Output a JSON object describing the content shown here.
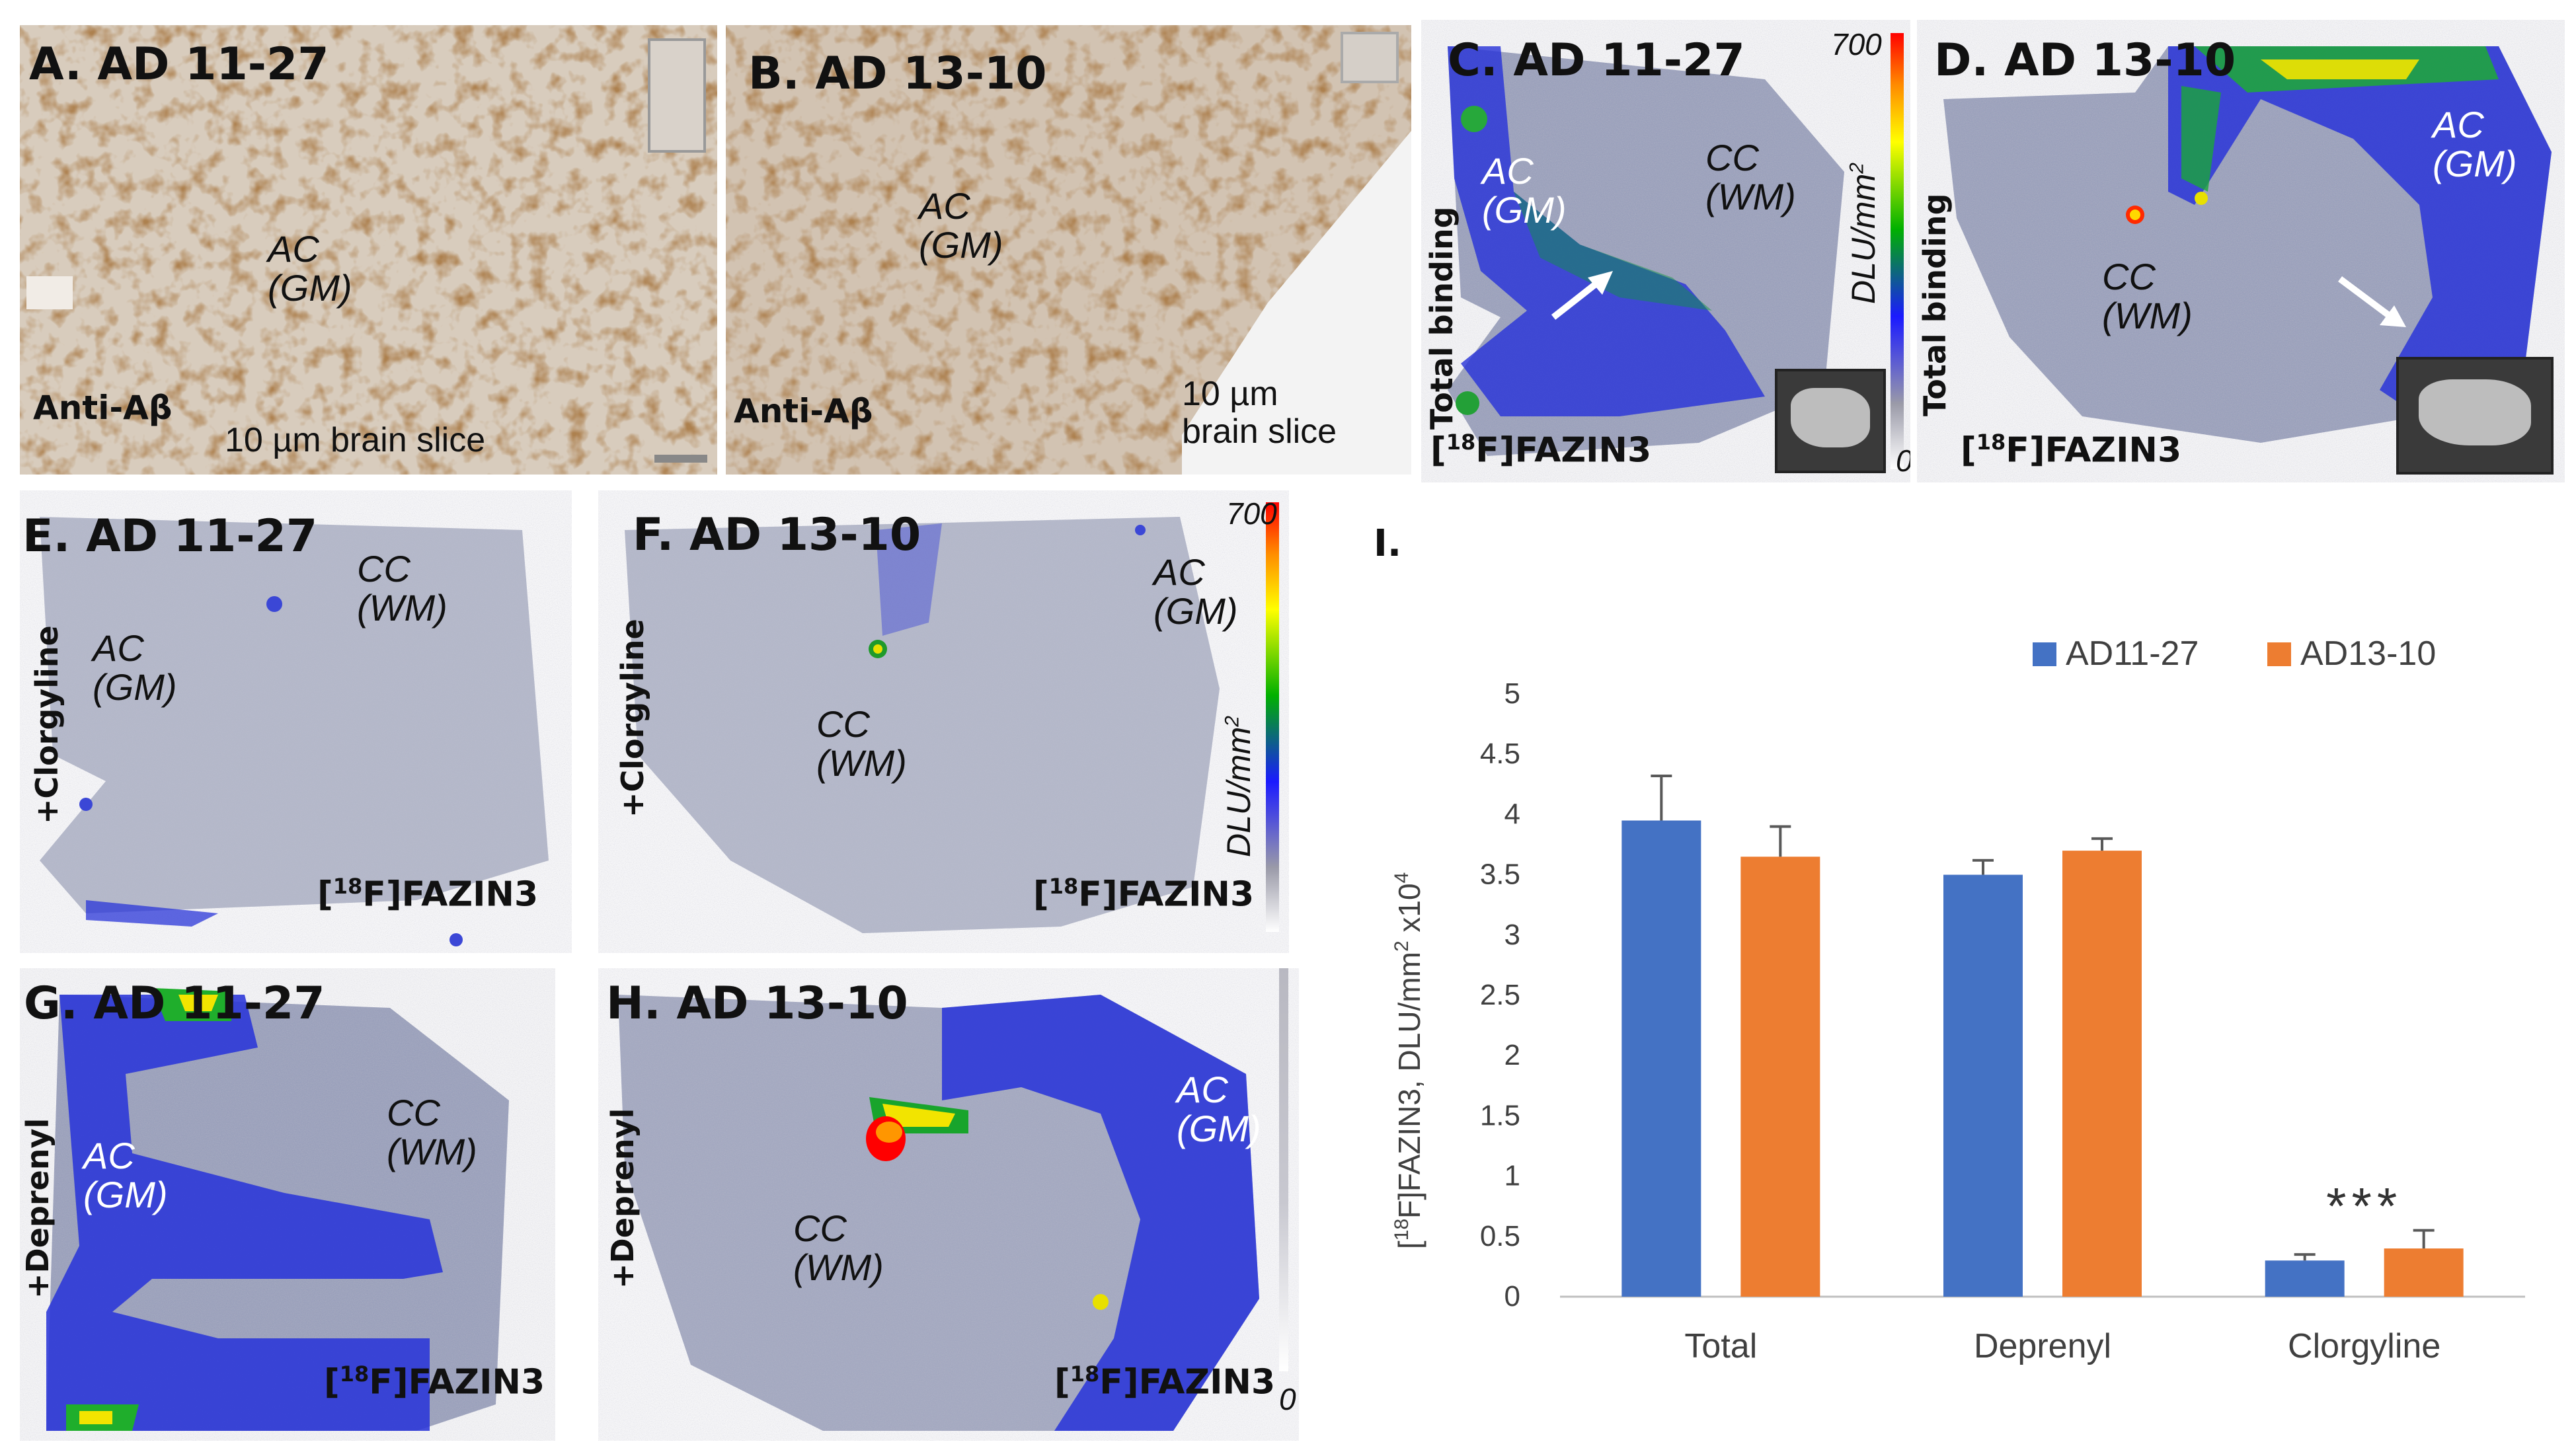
{
  "panels": {
    "A": {
      "title": "A. AD 11-27",
      "region": "AC\n(GM)",
      "stain": "Anti-Aβ",
      "slice": "10 µm brain slice"
    },
    "B": {
      "title": "B. AD 13-10",
      "region": "AC\n(GM)",
      "stain": "Anti-Aβ",
      "slice": "10 µm\nbrain slice"
    },
    "C": {
      "title": "C. AD 11-27",
      "region_ac": "AC\n(GM)",
      "region_cc": "CC\n(WM)",
      "side": "Total binding",
      "tracer_sup": "18",
      "tracer_rest": "F]FAZIN3",
      "tracer_open": "["
    },
    "D": {
      "title": "D. AD 13-10",
      "region_ac": "AC\n(GM)",
      "region_cc": "CC\n(WM)",
      "side": "Total binding",
      "tracer_sup": "18",
      "tracer_rest": "F]FAZIN3",
      "tracer_open": "["
    },
    "E": {
      "title": "E. AD 11-27",
      "region_ac": "AC\n(GM)",
      "region_cc": "CC\n(WM)",
      "side": "+Clorgyline",
      "tracer_sup": "18",
      "tracer_rest": "F]FAZIN3",
      "tracer_open": "["
    },
    "F": {
      "title": "F. AD 13-10",
      "region_ac": "AC\n(GM)",
      "region_cc": "CC\n(WM)",
      "side": "+Clorgyline",
      "tracer_sup": "18",
      "tracer_rest": "F]FAZIN3",
      "tracer_open": "["
    },
    "G": {
      "title": "G. AD 11-27",
      "region_ac": "AC\n(GM)",
      "region_cc": "CC\n(WM)",
      "side": "+Deprenyl",
      "tracer_sup": "18",
      "tracer_rest": "F]FAZIN3",
      "tracer_open": "["
    },
    "H": {
      "title": "H. AD 13-10",
      "region_ac": "AC\n(GM)",
      "region_cc": "CC\n(WM)",
      "side": "+Deprenyl",
      "tracer_sup": "18",
      "tracer_rest": "F]FAZIN3",
      "tracer_open": "["
    }
  },
  "colorbar_top": {
    "max": "700",
    "min": "0",
    "unit": "DLU/mm",
    "unit_sup": "2"
  },
  "colorbar_mid": {
    "max": "700",
    "min": "0",
    "unit": "DLU/mm",
    "unit_sup": "2"
  },
  "chart_label": "I.",
  "colors": {
    "series1": "#4472c4",
    "series2": "#ed7d31",
    "axis": "#bfbfbf",
    "text": "#404040"
  },
  "chart_data": {
    "type": "bar",
    "title": "",
    "categories": [
      "Total",
      "Deprenyl",
      "Clorgyline"
    ],
    "series": [
      {
        "name": "AD11-27",
        "values": [
          3.95,
          3.5,
          0.3
        ],
        "errors": [
          0.37,
          0.12,
          0.05
        ]
      },
      {
        "name": "AD13-10",
        "values": [
          3.65,
          3.7,
          0.4
        ],
        "errors": [
          0.25,
          0.1,
          0.15
        ]
      }
    ],
    "xlabel": "",
    "ylabel_prefix": "[",
    "ylabel_sup": "18",
    "ylabel_mid": "F]FAZIN3, DLU/mm",
    "ylabel_sup2": "2",
    "ylabel_mid2": " x10",
    "ylabel_sup3": "4",
    "ylim": [
      0,
      5
    ],
    "yticks": [
      "0",
      "0.5",
      "1",
      "1.5",
      "2",
      "2.5",
      "3",
      "3.5",
      "4",
      "4.5",
      "5"
    ],
    "annotation": "***",
    "legend_position": "top-right",
    "grid": false
  }
}
